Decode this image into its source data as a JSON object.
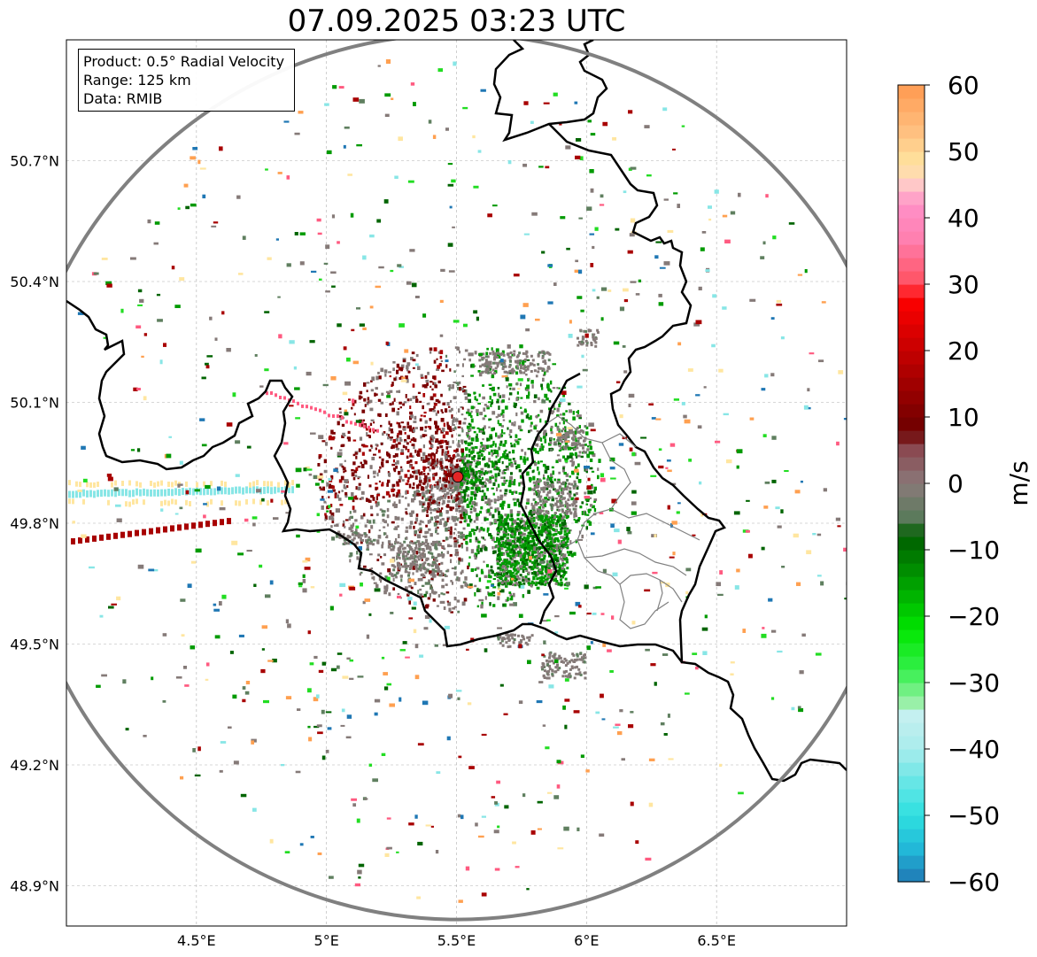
{
  "title": "07.09.2025 03:23 UTC",
  "info": {
    "product": "Product: 0.5° Radial Velocity",
    "range": "Range: 125 km",
    "data": "Data: RMIB"
  },
  "axes": {
    "lon_range": [
      4.0,
      7.0
    ],
    "lat_range": [
      48.8,
      51.0
    ],
    "x_ticks": [
      {
        "value": 4.5,
        "label": "4.5°E"
      },
      {
        "value": 5.0,
        "label": "5°E"
      },
      {
        "value": 5.5,
        "label": "5.5°E"
      },
      {
        "value": 6.0,
        "label": "6°E"
      },
      {
        "value": 6.5,
        "label": "6.5°E"
      }
    ],
    "y_ticks": [
      {
        "value": 50.7,
        "label": "50.7°N"
      },
      {
        "value": 50.4,
        "label": "50.4°N"
      },
      {
        "value": 50.1,
        "label": "50.1°N"
      },
      {
        "value": 49.8,
        "label": "49.8°N"
      },
      {
        "value": 49.5,
        "label": "49.5°N"
      },
      {
        "value": 49.2,
        "label": "49.2°N"
      },
      {
        "value": 48.9,
        "label": "48.9°N"
      }
    ],
    "grid": true
  },
  "radar": {
    "site_lon": 5.505,
    "site_lat": 49.915,
    "site_color": "#e32626",
    "range_ring_color": "#808080"
  },
  "colorbar": {
    "label": "m/s",
    "vmin": -60,
    "vmax": 60,
    "ticks": [
      {
        "value": 60,
        "label": "60"
      },
      {
        "value": 50,
        "label": "50"
      },
      {
        "value": 40,
        "label": "40"
      },
      {
        "value": 30,
        "label": "30"
      },
      {
        "value": 20,
        "label": "20"
      },
      {
        "value": 10,
        "label": "10"
      },
      {
        "value": 0,
        "label": "0"
      },
      {
        "value": -10,
        "label": "−10"
      },
      {
        "value": -20,
        "label": "−20"
      },
      {
        "value": -30,
        "label": "−30"
      },
      {
        "value": -40,
        "label": "−40"
      },
      {
        "value": -50,
        "label": "−50"
      },
      {
        "value": -60,
        "label": "−60"
      }
    ],
    "stops": [
      {
        "v": -60,
        "c": "#1f77b4"
      },
      {
        "v": -55,
        "c": "#22b8d8"
      },
      {
        "v": -50,
        "c": "#2ee0e0"
      },
      {
        "v": -45,
        "c": "#66e6e6"
      },
      {
        "v": -40,
        "c": "#a8ecec"
      },
      {
        "v": -35,
        "c": "#c4f0f0"
      },
      {
        "v": -33,
        "c": "#99f0a8"
      },
      {
        "v": -28,
        "c": "#33f04a"
      },
      {
        "v": -22,
        "c": "#00e600"
      },
      {
        "v": -15,
        "c": "#00a000"
      },
      {
        "v": -8,
        "c": "#005f00"
      },
      {
        "v": -5,
        "c": "#5c7a5c"
      },
      {
        "v": 0,
        "c": "#8a7a7a"
      },
      {
        "v": 5,
        "c": "#8a4a52"
      },
      {
        "v": 8,
        "c": "#6e0000"
      },
      {
        "v": 15,
        "c": "#a00000"
      },
      {
        "v": 22,
        "c": "#d40000"
      },
      {
        "v": 28,
        "c": "#ff0000"
      },
      {
        "v": 30,
        "c": "#ff5060"
      },
      {
        "v": 37,
        "c": "#ff80b0"
      },
      {
        "v": 42,
        "c": "#ff90c8"
      },
      {
        "v": 45,
        "c": "#ffc8c8"
      },
      {
        "v": 48,
        "c": "#ffe6a0"
      },
      {
        "v": 53,
        "c": "#ffc080"
      },
      {
        "v": 60,
        "c": "#ff9a50"
      }
    ]
  },
  "palette": {
    "outbound_dark": "#7a0000",
    "outbound": "#a80000",
    "outbound_bright": "#e00000",
    "pink": "#ff5a80",
    "zero": "#857a78",
    "zero_green": "#5f7f5f",
    "inbound_dark": "#006400",
    "inbound": "#009a00",
    "inbound_bright": "#22dd22",
    "cyan": "#88e6e6",
    "yellow": "#ffe6a0",
    "orange": "#ffa050",
    "blue": "#1f77b4"
  },
  "borders": {
    "national_color": "#000000",
    "regional_color": "#808080"
  }
}
